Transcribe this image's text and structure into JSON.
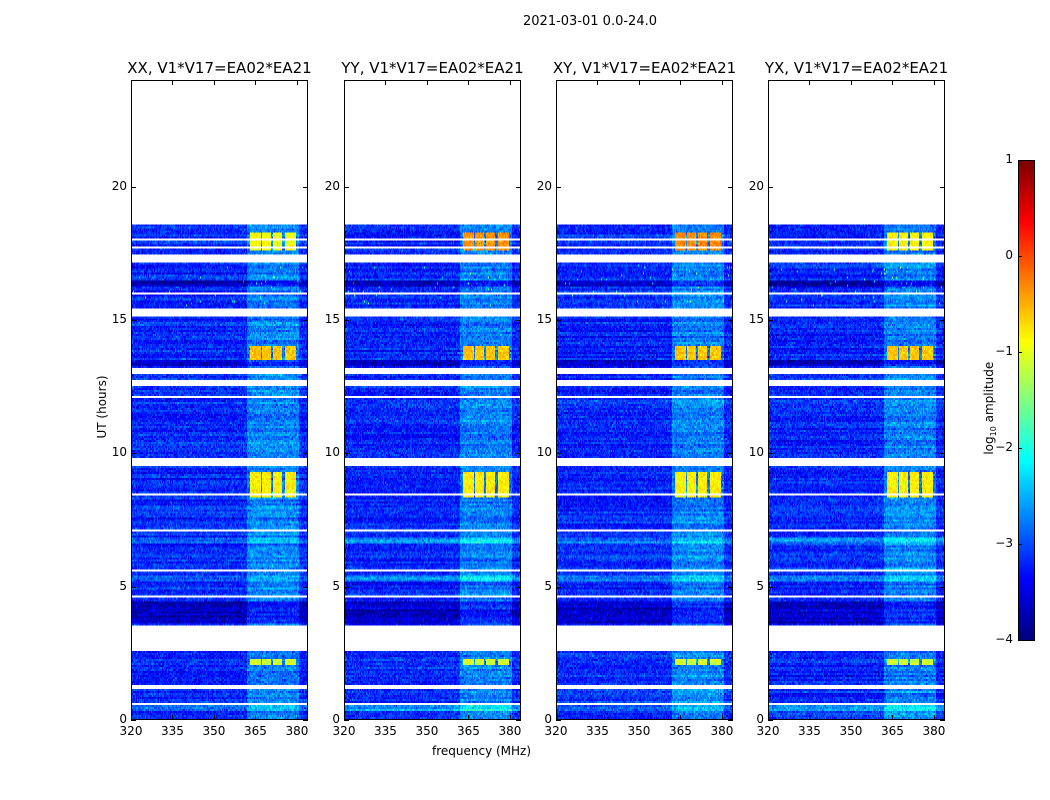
{
  "chart_data": {
    "type": "heatmap",
    "title": "2021-03-01 0.0-24.0",
    "xlabel": "frequency (MHz)",
    "ylabel": "UT (hours)",
    "xlim": [
      320,
      384
    ],
    "ylim": [
      0,
      24
    ],
    "xticks": [
      320,
      335,
      350,
      365,
      380
    ],
    "yticks": [
      0,
      5,
      10,
      15,
      20
    ],
    "colormap": "jet",
    "colorbar": {
      "label": "log10 amplitude",
      "label_main": "log",
      "label_sub": "10",
      "label_rest": " amplitude",
      "range": [
        -4,
        1
      ],
      "ticks": [
        1,
        0,
        -1,
        -2,
        -3,
        -4
      ]
    },
    "panels": [
      {
        "title": "XX, V1*V17=EA02*EA21",
        "peak": -0.9
      },
      {
        "title": "YY, V1*V17=EA02*EA21",
        "peak": -0.45
      },
      {
        "title": "XY, V1*V17=EA02*EA21",
        "peak": -0.4
      },
      {
        "title": "YX, V1*V17=EA02*EA21",
        "peak": -0.85
      }
    ],
    "data_end_hour": 18.6,
    "flagged_hours": [
      [
        17.15,
        17.45
      ],
      [
        15.15,
        15.45
      ],
      [
        13.0,
        13.2
      ],
      [
        12.55,
        12.75
      ],
      [
        9.55,
        9.85
      ],
      [
        2.55,
        3.5
      ],
      [
        1.1,
        1.3
      ],
      [
        1.55,
        1.6
      ],
      [
        0.55,
        0.6
      ],
      [
        5.0,
        5.05
      ],
      [
        7.05,
        7.1
      ],
      [
        11.0,
        11.05
      ],
      [
        18.0,
        18.05
      ],
      [
        17.7,
        17.75
      ],
      [
        16.0,
        16.05
      ],
      [
        14.3,
        14.35
      ],
      [
        12.1,
        12.15
      ],
      [
        8.4,
        8.45
      ],
      [
        5.55,
        5.6
      ],
      [
        4.6,
        4.65
      ]
    ],
    "bright_channels_mhz": [
      [
        363,
        367
      ],
      [
        367.5,
        371
      ],
      [
        371.5,
        375
      ],
      [
        376,
        380
      ]
    ],
    "bright_epochs": [
      {
        "hours": [
          17.6,
          18.3
        ],
        "level": 0
      },
      {
        "hours": [
          13.5,
          14.0
        ],
        "level": -0.6
      },
      {
        "hours": [
          8.3,
          9.3
        ],
        "level": -0.8
      },
      {
        "hours": [
          2.0,
          2.25
        ],
        "level": -1.1
      }
    ],
    "background_level": -3.2
  }
}
